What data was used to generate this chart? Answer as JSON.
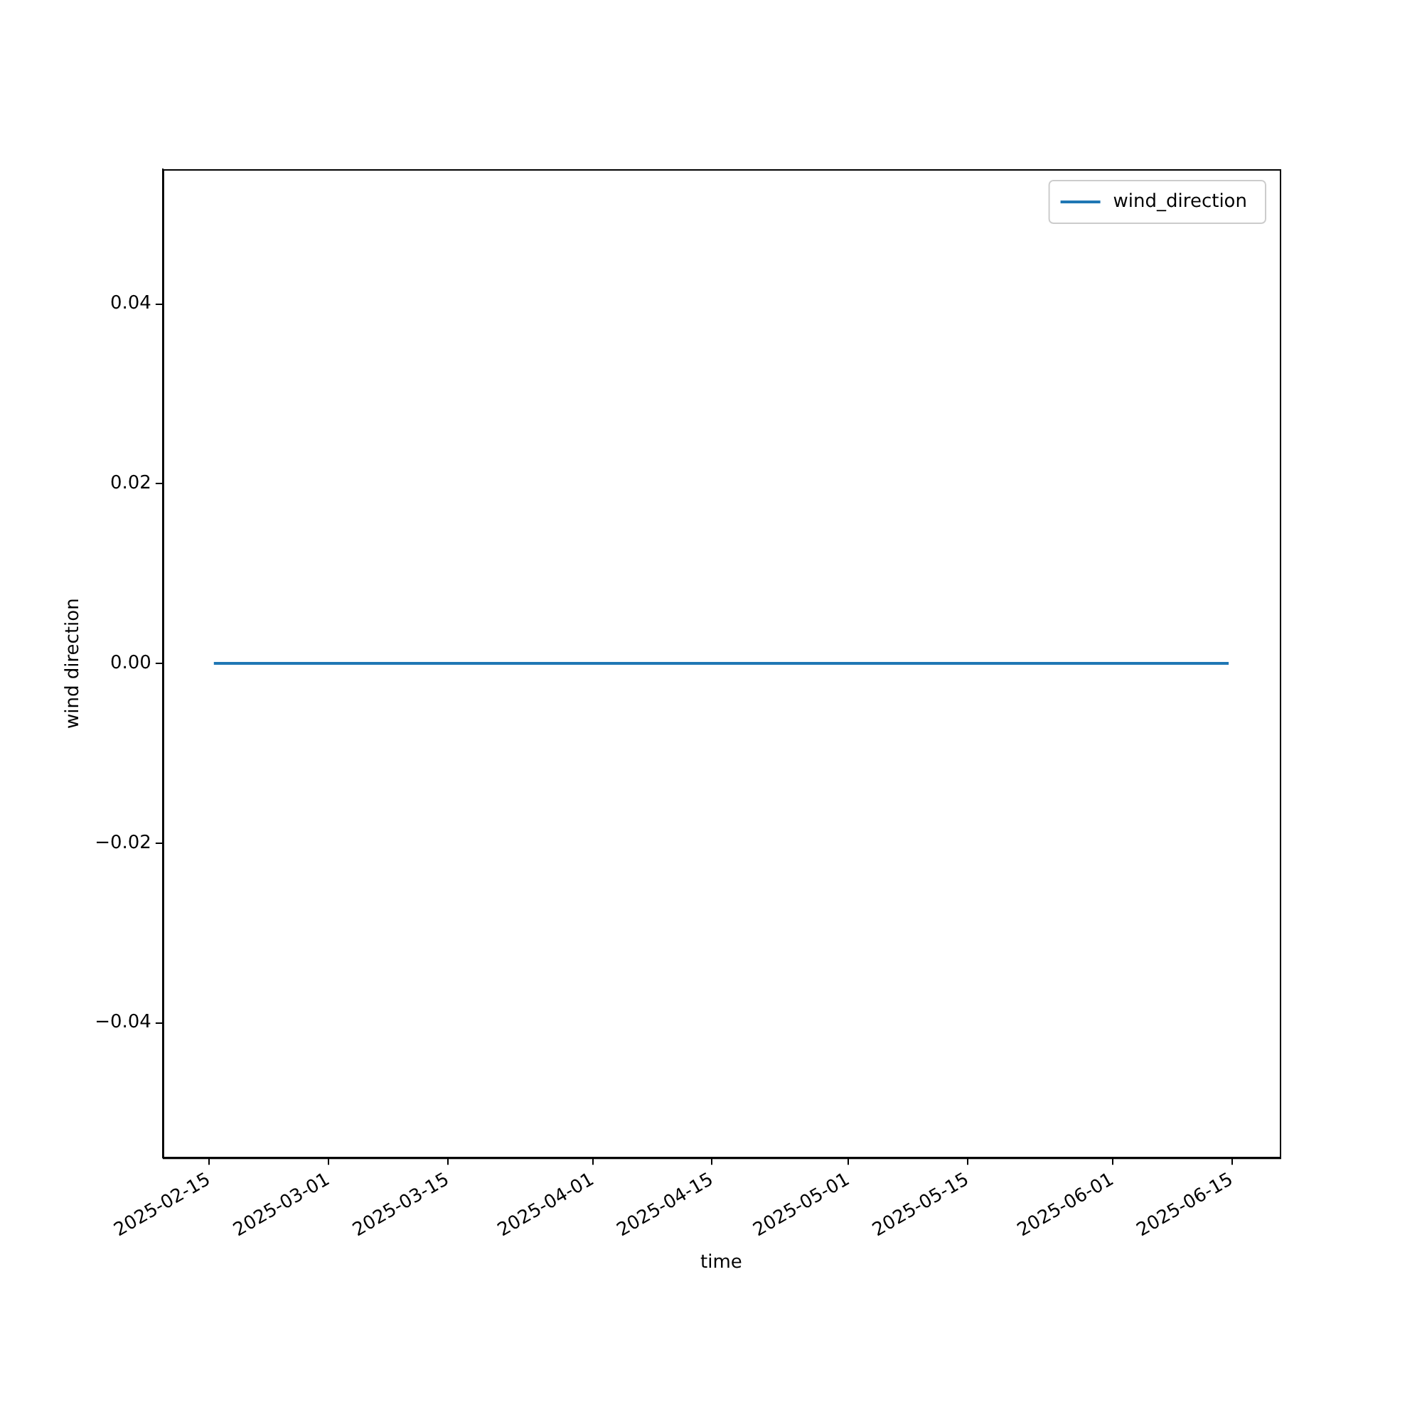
{
  "chart_data": {
    "type": "line",
    "xlabel": "time",
    "ylabel": "wind direction",
    "x": [
      "2025-02-15T13:00",
      "2025-06-14T15:00"
    ],
    "series": [
      {
        "name": "wind_direction",
        "color": "#1f77b4",
        "values": [
          0,
          0
        ]
      }
    ],
    "xlim": [
      "2025-02-09T13:00",
      "2025-06-20T15:00"
    ],
    "xticks": [
      "2025-02-15",
      "2025-03-01",
      "2025-03-15",
      "2025-04-01",
      "2025-04-15",
      "2025-05-01",
      "2025-05-15",
      "2025-06-01",
      "2025-06-15"
    ],
    "ylim": [
      -0.055,
      0.055
    ],
    "yticks": [
      {
        "value": -0.04,
        "label": "−0.04"
      },
      {
        "value": -0.02,
        "label": "−0.02"
      },
      {
        "value": 0,
        "label": "0.00"
      },
      {
        "value": 0.02,
        "label": "0.02"
      },
      {
        "value": 0.04,
        "label": "0.04"
      }
    ],
    "grid": false,
    "legend": "top right",
    "marker": "none",
    "line_style": "solid"
  }
}
